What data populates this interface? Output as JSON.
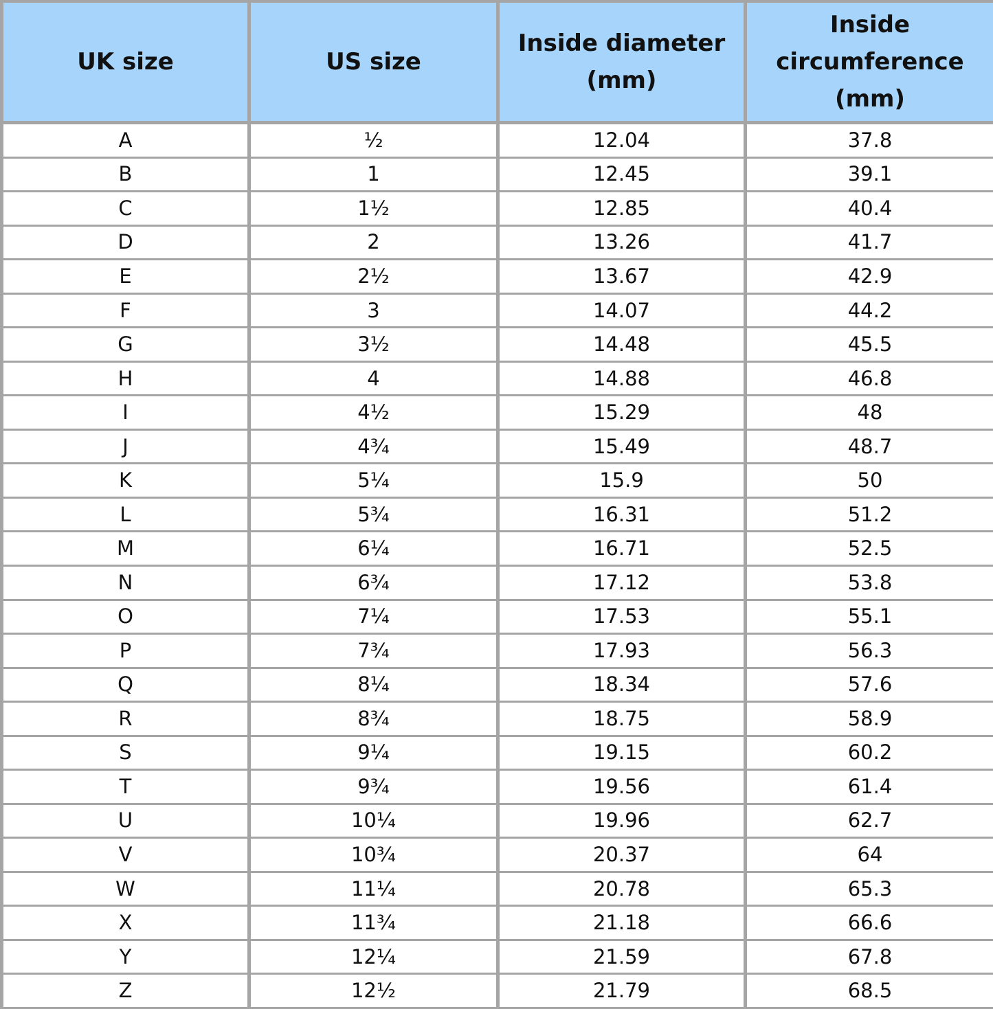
{
  "header_color": "#a6d4fa",
  "border_color": "#a5a5a5",
  "columns": [
    "UK size",
    "US size",
    "Inside diameter (mm)",
    "Inside circumference (mm)"
  ],
  "rows": [
    [
      "A",
      "½",
      "12.04",
      "37.8"
    ],
    [
      "B",
      "1",
      "12.45",
      "39.1"
    ],
    [
      "C",
      "1½",
      "12.85",
      "40.4"
    ],
    [
      "D",
      "2",
      "13.26",
      "41.7"
    ],
    [
      "E",
      "2½",
      "13.67",
      "42.9"
    ],
    [
      "F",
      "3",
      "14.07",
      "44.2"
    ],
    [
      "G",
      "3½",
      "14.48",
      "45.5"
    ],
    [
      "H",
      "4",
      "14.88",
      "46.8"
    ],
    [
      "I",
      "4½",
      "15.29",
      "48"
    ],
    [
      "J",
      "4¾",
      "15.49",
      "48.7"
    ],
    [
      "K",
      "5¼",
      "15.9",
      "50"
    ],
    [
      "L",
      "5¾",
      "16.31",
      "51.2"
    ],
    [
      "M",
      "6¼",
      "16.71",
      "52.5"
    ],
    [
      "N",
      "6¾",
      "17.12",
      "53.8"
    ],
    [
      "O",
      "7¼",
      "17.53",
      "55.1"
    ],
    [
      "P",
      "7¾",
      "17.93",
      "56.3"
    ],
    [
      "Q",
      "8¼",
      "18.34",
      "57.6"
    ],
    [
      "R",
      "8¾",
      "18.75",
      "58.9"
    ],
    [
      "S",
      "9¼",
      "19.15",
      "60.2"
    ],
    [
      "T",
      "9¾",
      "19.56",
      "61.4"
    ],
    [
      "U",
      "10¼",
      "19.96",
      "62.7"
    ],
    [
      "V",
      "10¾",
      "20.37",
      "64"
    ],
    [
      "W",
      "11¼",
      "20.78",
      "65.3"
    ],
    [
      "X",
      "11¾",
      "21.18",
      "66.6"
    ],
    [
      "Y",
      "12¼",
      "21.59",
      "67.8"
    ],
    [
      "Z",
      "12½",
      "21.79",
      "68.5"
    ]
  ]
}
